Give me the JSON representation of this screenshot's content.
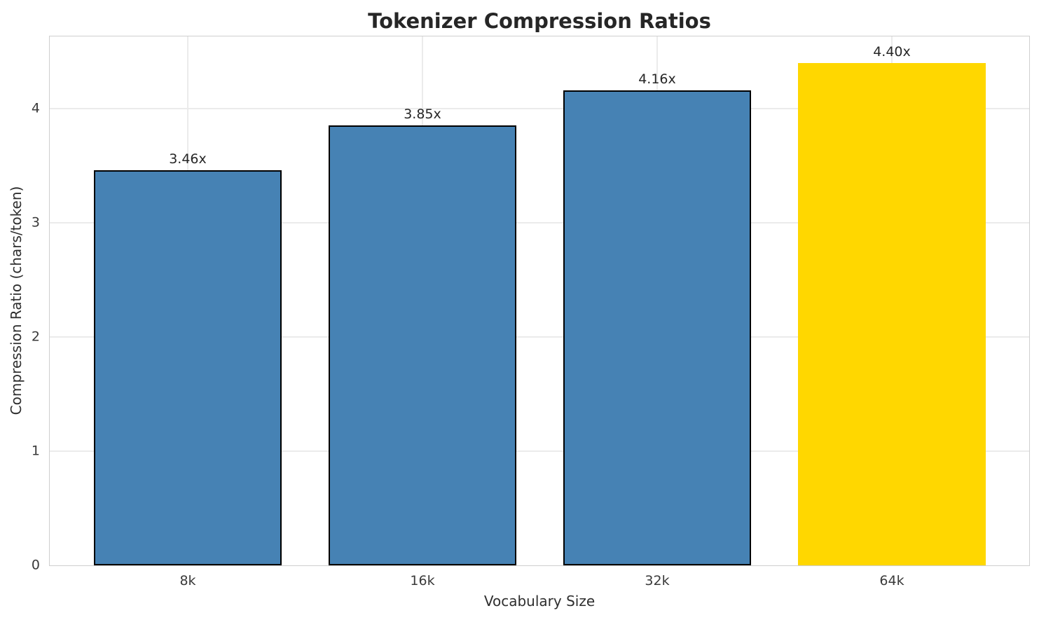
{
  "chart_data": {
    "type": "bar",
    "title": "Tokenizer Compression Ratios",
    "xlabel": "Vocabulary Size",
    "ylabel": "Compression Ratio (chars/token)",
    "categories": [
      "8k",
      "16k",
      "32k",
      "64k"
    ],
    "values": [
      3.46,
      3.85,
      4.16,
      4.4
    ],
    "bar_labels": [
      "3.46x",
      "3.85x",
      "4.16x",
      "4.40x"
    ],
    "yticks": [
      "0",
      "1",
      "2",
      "3",
      "4"
    ],
    "ylim": [
      0,
      4.63
    ],
    "grid": true,
    "legend_position": "none",
    "highlight_index": 3,
    "colors": {
      "bar_default": "#4682B4",
      "bar_highlight": "#FFD700",
      "bar_edge": "#000000",
      "grid_line": "#ebebeb",
      "spine": "#cfcfcf",
      "title_text": "#262626",
      "tick_text": "#3a3a3a"
    }
  }
}
